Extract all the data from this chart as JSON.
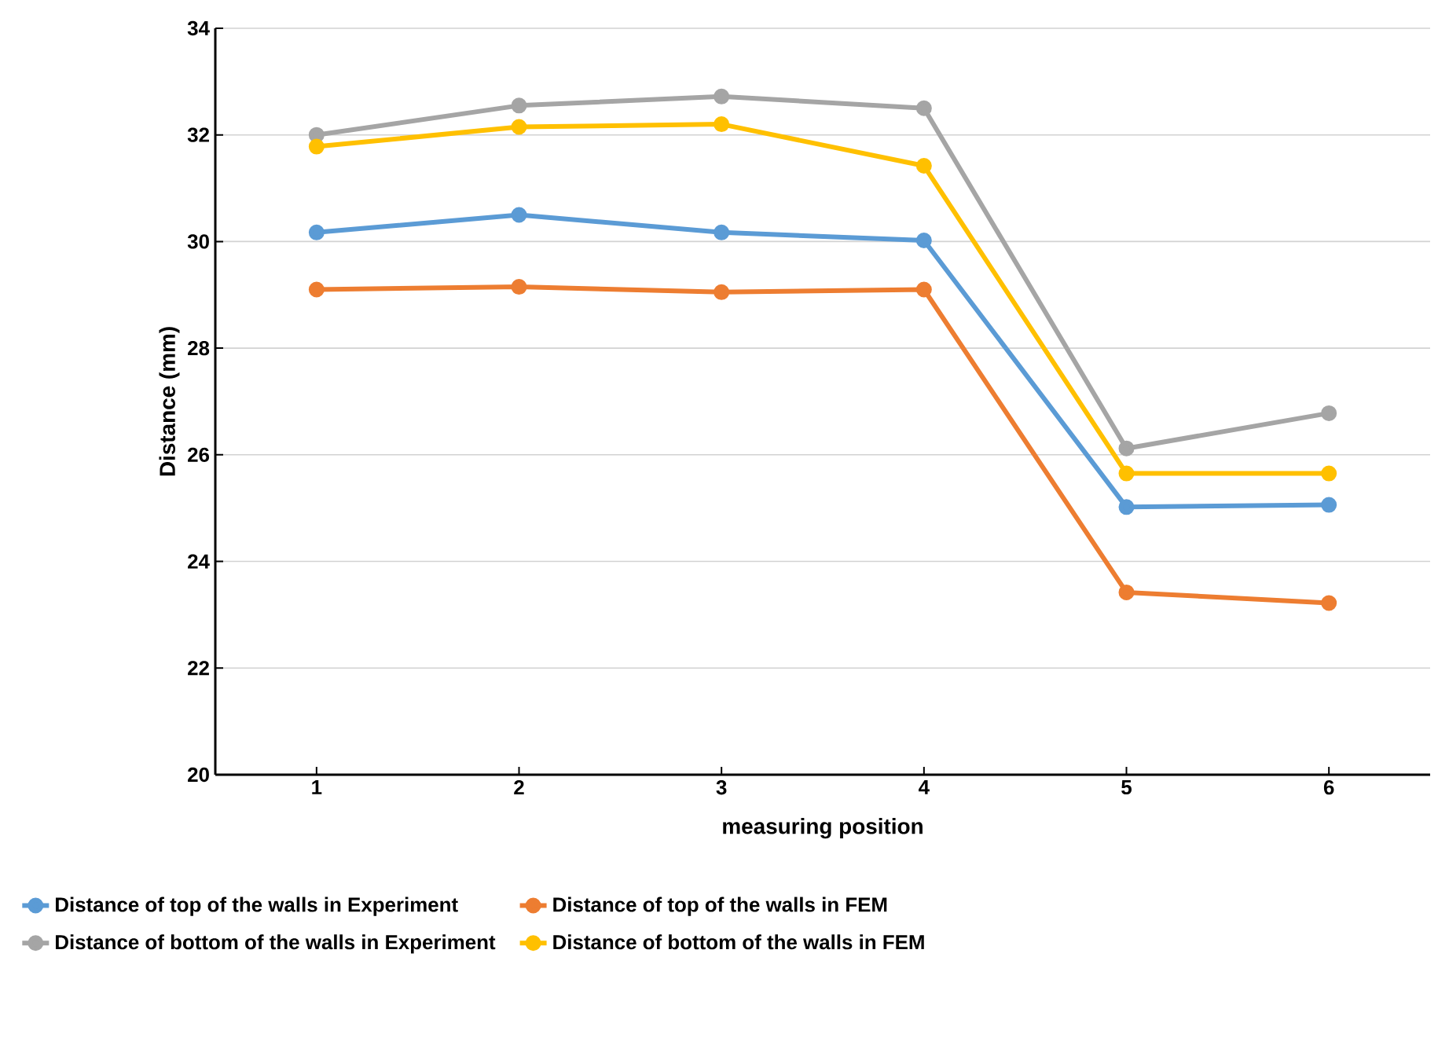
{
  "chart_data": {
    "type": "line",
    "xlabel": "measuring position",
    "ylabel": "Distance  (mm)",
    "categories": [
      "1",
      "2",
      "3",
      "4",
      "5",
      "6"
    ],
    "series": [
      {
        "name": "Distance of top of the walls in Experiment",
        "color": "#5b9bd5",
        "values": [
          30.17,
          30.5,
          30.17,
          30.02,
          25.02,
          25.06
        ]
      },
      {
        "name": "Distance of top of the walls in FEM",
        "color": "#ed7d31",
        "values": [
          29.1,
          29.15,
          29.05,
          29.1,
          23.42,
          23.22
        ]
      },
      {
        "name": "Distance of bottom of the walls in Experiment",
        "color": "#a5a5a5",
        "values": [
          32.0,
          32.55,
          32.72,
          32.5,
          26.12,
          26.78
        ]
      },
      {
        "name": "Distance of bottom of the walls in FEM",
        "color": "#ffc000",
        "values": [
          31.78,
          32.15,
          32.2,
          31.42,
          25.65,
          25.65
        ]
      }
    ],
    "ylim": [
      20,
      34
    ],
    "yticks": [
      20,
      22,
      24,
      26,
      28,
      30,
      32,
      34
    ],
    "grid": "y",
    "legend": "bottom",
    "marker": "circle",
    "line_style": "solid"
  }
}
